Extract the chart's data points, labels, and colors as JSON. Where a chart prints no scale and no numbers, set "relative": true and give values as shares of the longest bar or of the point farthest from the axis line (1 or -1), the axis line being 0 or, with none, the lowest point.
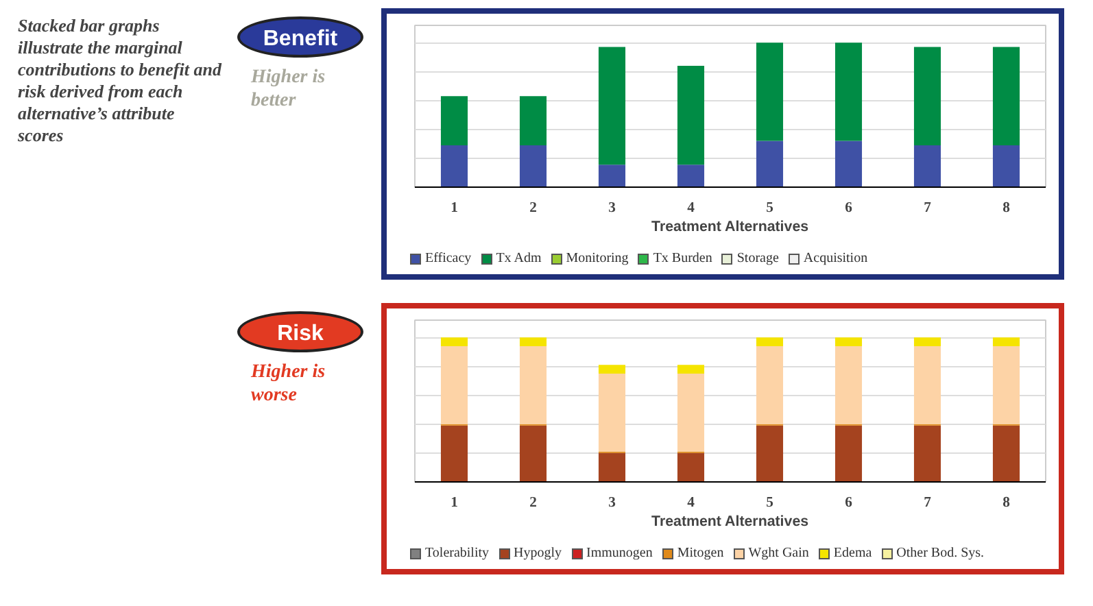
{
  "chart_data": [
    {
      "type": "bar",
      "title": "Benefit",
      "subtitle": "Higher is better",
      "xlabel": "Treatment Alternatives",
      "annotations": [
        "Stacked bar graphs illustrate the marginal contributions to benefit and risk derived from each alternative’s attribute scores"
      ],
      "categories": [
        "1",
        "2",
        "3",
        "4",
        "5",
        "6",
        "7",
        "8"
      ],
      "stacked": true,
      "relative": true,
      "grid": "y",
      "legend": "bottom",
      "series": [
        {
          "name": "Efficacy",
          "color": "#3f51a5",
          "values": [
            0.29,
            0.29,
            0.155,
            0.155,
            0.32,
            0.32,
            0.29,
            0.29
          ]
        },
        {
          "name": "Tx Adm",
          "color": "#008c45",
          "values": [
            0.34,
            0.34,
            0.815,
            0.685,
            0.68,
            0.68,
            0.68,
            0.68
          ]
        },
        {
          "name": "Monitoring",
          "color": "#9acd32",
          "values": [
            0,
            0,
            0,
            0,
            0,
            0,
            0,
            0
          ]
        },
        {
          "name": "Tx Burden",
          "color": "#2eb84a",
          "values": [
            0,
            0,
            0,
            0,
            0,
            0,
            0,
            0
          ]
        },
        {
          "name": "Storage",
          "color": "#e8f0d8",
          "values": [
            0,
            0,
            0,
            0,
            0,
            0,
            0,
            0
          ]
        },
        {
          "name": "Acquisition",
          "color": "#f0f0f0",
          "values": [
            0,
            0,
            0,
            0,
            0,
            0,
            0,
            0
          ]
        }
      ]
    },
    {
      "type": "bar",
      "title": "Risk",
      "subtitle": "Higher is worse",
      "xlabel": "Treatment Alternatives",
      "categories": [
        "1",
        "2",
        "3",
        "4",
        "5",
        "6",
        "7",
        "8"
      ],
      "stacked": true,
      "relative": true,
      "grid": "y",
      "legend": "bottom",
      "series": [
        {
          "name": "Tolerability",
          "color": "#808080",
          "values": [
            0,
            0,
            0,
            0,
            0,
            0,
            0,
            0
          ]
        },
        {
          "name": "Hypogly",
          "color": "#a5431f",
          "values": [
            0.39,
            0.39,
            0.2,
            0.2,
            0.39,
            0.39,
            0.39,
            0.39
          ]
        },
        {
          "name": "Immunogen",
          "color": "#cc2020",
          "values": [
            0,
            0,
            0,
            0,
            0,
            0,
            0,
            0
          ]
        },
        {
          "name": "Mitogen",
          "color": "#e08a1a",
          "values": [
            0.01,
            0.01,
            0.01,
            0.01,
            0.01,
            0.01,
            0.01,
            0.01
          ]
        },
        {
          "name": "Wght Gain",
          "color": "#fdd3a6",
          "values": [
            0.54,
            0.54,
            0.54,
            0.54,
            0.54,
            0.54,
            0.54,
            0.54
          ]
        },
        {
          "name": "Edema",
          "color": "#f5e400",
          "values": [
            0.06,
            0.06,
            0.06,
            0.06,
            0.06,
            0.06,
            0.06,
            0.06
          ]
        },
        {
          "name": "Other Bod. Sys.",
          "color": "#f5f0a0",
          "values": [
            0,
            0,
            0,
            0,
            0,
            0,
            0,
            0
          ]
        }
      ]
    }
  ]
}
